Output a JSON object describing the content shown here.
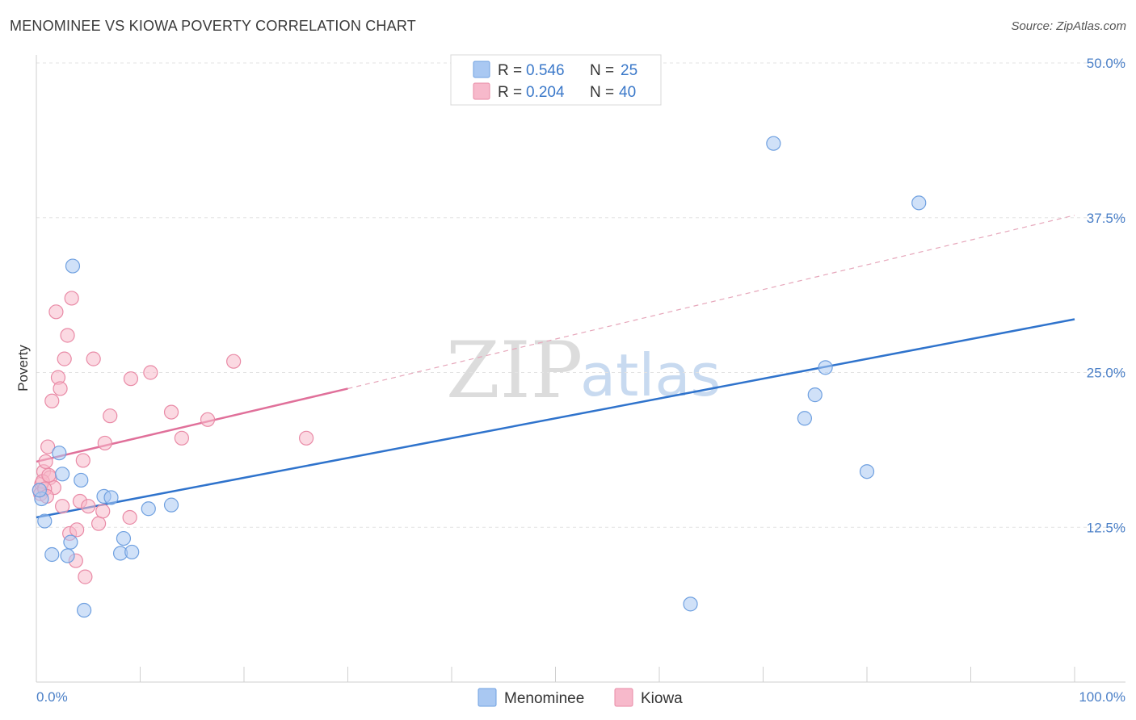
{
  "header": {
    "title": "MENOMINEE VS KIOWA POVERTY CORRELATION CHART",
    "source": "Source: ZipAtlas.com"
  },
  "watermark": {
    "zip": "ZIP",
    "atlas": "atlas"
  },
  "legend": {
    "rows": [
      {
        "r_label": "R =",
        "r_value": "0.546",
        "n_label": "N =",
        "n_value": "25",
        "color": "#a9c8f2"
      },
      {
        "r_label": "R =",
        "r_value": "0.204",
        "n_label": "N =",
        "n_value": "40",
        "color": "#f7b9cb"
      }
    ]
  },
  "chart_data": {
    "type": "scatter",
    "title": "MENOMINEE VS KIOWA POVERTY CORRELATION CHART",
    "xlabel": "",
    "ylabel": "Poverty",
    "xlim": [
      0,
      100
    ],
    "ylim": [
      0,
      50.0
    ],
    "x_tick_labels": [
      "0.0%",
      "100.0%"
    ],
    "y_ticks": [
      {
        "value": 12.5,
        "label": "12.5%"
      },
      {
        "value": 25.0,
        "label": "25.0%"
      },
      {
        "value": 37.5,
        "label": "37.5%"
      },
      {
        "value": 50.0,
        "label": "50.0%"
      }
    ],
    "series": [
      {
        "name": "Menominee",
        "color": "#6fa0e0",
        "fill": "#a9c8f2",
        "line_color": "#2f73cc",
        "trend": {
          "x0": 0,
          "y0": 13.3,
          "x1": 100,
          "y1": 29.3,
          "dashed_to": null
        },
        "points": [
          [
            0.5,
            14.8
          ],
          [
            0.8,
            13.0
          ],
          [
            1.5,
            10.3
          ],
          [
            2.2,
            18.5
          ],
          [
            2.5,
            16.8
          ],
          [
            3.0,
            10.2
          ],
          [
            3.3,
            11.3
          ],
          [
            3.5,
            33.6
          ],
          [
            4.3,
            16.3
          ],
          [
            4.6,
            5.8
          ],
          [
            6.5,
            15.0
          ],
          [
            7.2,
            14.9
          ],
          [
            8.1,
            10.4
          ],
          [
            8.4,
            11.6
          ],
          [
            9.2,
            10.5
          ],
          [
            10.8,
            14.0
          ],
          [
            13.0,
            14.3
          ],
          [
            63.0,
            6.3
          ],
          [
            71.0,
            43.5
          ],
          [
            74.0,
            21.3
          ],
          [
            75.0,
            23.2
          ],
          [
            76.0,
            25.4
          ],
          [
            80.0,
            17.0
          ],
          [
            85.0,
            38.7
          ],
          [
            0.3,
            15.5
          ]
        ]
      },
      {
        "name": "Kiowa",
        "color": "#e98aa6",
        "fill": "#f7b9cb",
        "line_color": "#e0709a",
        "trend": {
          "x0": 0,
          "y0": 17.8,
          "x1": 30,
          "y1": 23.7,
          "dashed_to": {
            "x": 100,
            "y": 37.7
          }
        },
        "points": [
          [
            0.3,
            15.5
          ],
          [
            0.5,
            16.0
          ],
          [
            0.7,
            17.0
          ],
          [
            0.9,
            17.8
          ],
          [
            1.1,
            19.0
          ],
          [
            1.3,
            16.5
          ],
          [
            1.5,
            22.7
          ],
          [
            1.7,
            15.7
          ],
          [
            1.9,
            29.9
          ],
          [
            2.1,
            24.6
          ],
          [
            2.3,
            23.7
          ],
          [
            2.5,
            14.2
          ],
          [
            2.7,
            26.1
          ],
          [
            3.0,
            28.0
          ],
          [
            3.2,
            12.0
          ],
          [
            3.4,
            31.0
          ],
          [
            3.8,
            9.8
          ],
          [
            3.9,
            12.3
          ],
          [
            4.2,
            14.6
          ],
          [
            4.5,
            17.9
          ],
          [
            4.7,
            8.5
          ],
          [
            5.0,
            14.2
          ],
          [
            5.5,
            26.1
          ],
          [
            6.0,
            12.8
          ],
          [
            6.4,
            13.8
          ],
          [
            6.6,
            19.3
          ],
          [
            7.1,
            21.5
          ],
          [
            9.0,
            13.3
          ],
          [
            9.1,
            24.5
          ],
          [
            11.0,
            25.0
          ],
          [
            13.0,
            21.8
          ],
          [
            14.0,
            19.7
          ],
          [
            16.5,
            21.2
          ],
          [
            19.0,
            25.9
          ],
          [
            26.0,
            19.7
          ],
          [
            0.4,
            15.2
          ],
          [
            0.6,
            16.2
          ],
          [
            1.2,
            16.7
          ],
          [
            0.8,
            15.6
          ],
          [
            1.0,
            15.0
          ]
        ]
      }
    ]
  }
}
